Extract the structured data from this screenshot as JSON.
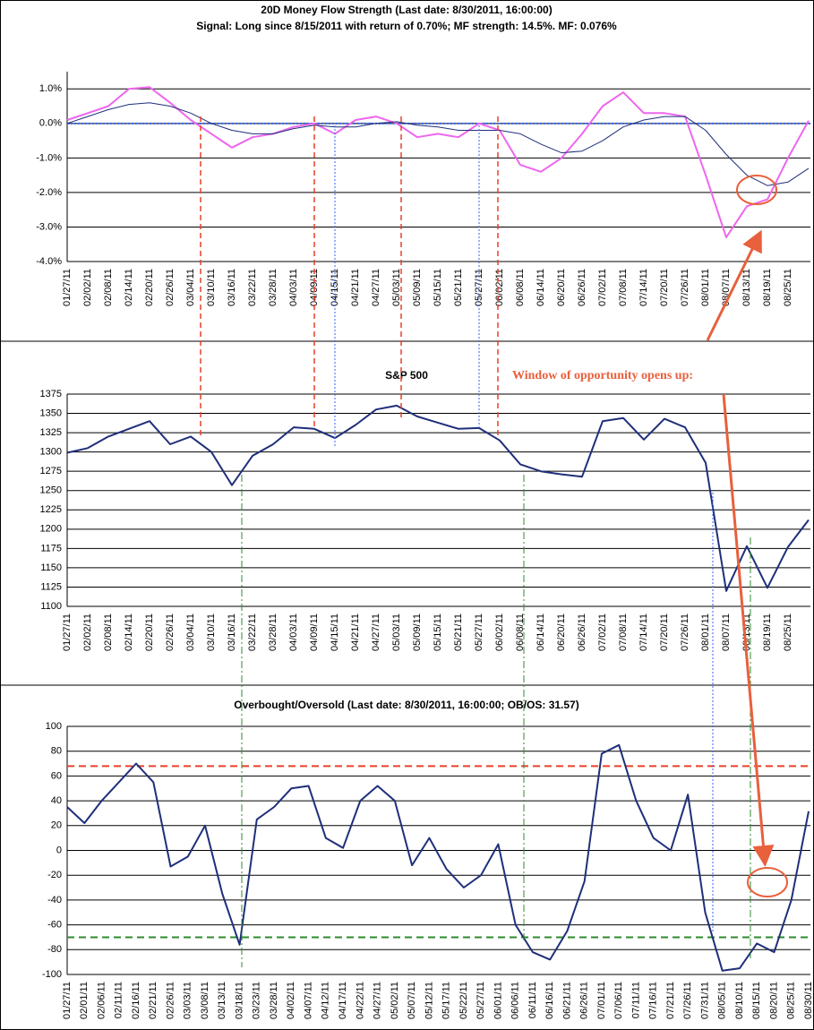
{
  "chart_data": [
    {
      "type": "line",
      "title": "20D Money Flow Strength (Last date: 8/30/2011, 16:00:00)",
      "subtitle": "Signal: Long since  8/15/2011 with return of 0.70%; MF strength: 14.5%. MF: 0.076%",
      "categories": [
        "01/27/11",
        "02/02/11",
        "02/08/11",
        "02/14/11",
        "02/20/11",
        "02/26/11",
        "03/04/11",
        "03/10/11",
        "03/16/11",
        "03/22/11",
        "03/28/11",
        "04/03/11",
        "04/09/11",
        "04/15/11",
        "04/21/11",
        "04/27/11",
        "05/03/11",
        "05/09/11",
        "05/15/11",
        "05/21/11",
        "05/27/11",
        "06/02/11",
        "06/08/11",
        "06/14/11",
        "06/20/11",
        "06/26/11",
        "07/02/11",
        "07/08/11",
        "07/14/11",
        "07/20/11",
        "07/26/11",
        "08/01/11",
        "08/07/11",
        "08/13/11",
        "08/19/11",
        "08/25/11",
        null
      ],
      "series": [
        {
          "color": "#ee66ee",
          "width": 2,
          "values": [
            0.1,
            0.3,
            0.5,
            1.0,
            1.05,
            0.6,
            0.1,
            -0.3,
            -0.7,
            -0.4,
            -0.3,
            -0.1,
            0.0,
            -0.3,
            0.1,
            0.2,
            0.0,
            -0.4,
            -0.3,
            -0.4,
            0.0,
            -0.2,
            -1.2,
            -1.4,
            -1.0,
            -0.3,
            0.5,
            0.9,
            0.3,
            0.3,
            0.2,
            -1.5,
            -3.3,
            -2.4,
            -2.2,
            -1.0,
            0.08
          ]
        },
        {
          "color": "#1f2f7a",
          "width": 1,
          "values": [
            0.0,
            0.2,
            0.4,
            0.55,
            0.6,
            0.5,
            0.3,
            0.0,
            -0.2,
            -0.3,
            -0.3,
            -0.15,
            -0.05,
            -0.1,
            -0.1,
            0.0,
            0.05,
            -0.05,
            -0.1,
            -0.2,
            -0.2,
            -0.2,
            -0.3,
            -0.6,
            -0.85,
            -0.8,
            -0.5,
            -0.1,
            0.1,
            0.2,
            0.2,
            -0.2,
            -0.9,
            -1.5,
            -1.8,
            -1.7,
            -1.3
          ]
        }
      ],
      "hlines": [
        {
          "value": 0,
          "color": "#3366ff",
          "style": "dotted"
        }
      ],
      "ylim": [
        -4,
        1.5
      ],
      "yticks": [
        {
          "value": -4,
          "label": "-4.0%"
        },
        {
          "value": -3,
          "label": "-3.0%"
        },
        {
          "value": -2,
          "label": "-2.0%"
        },
        {
          "value": -1,
          "label": "-1.0%"
        },
        {
          "value": 0,
          "label": "0.0%"
        },
        {
          "value": 1,
          "label": "1.0%"
        }
      ],
      "grid": true
    },
    {
      "type": "line",
      "title": "S&P 500",
      "annotation": "Window of opportunity opens up:",
      "categories": [
        "01/27/11",
        "02/02/11",
        "02/08/11",
        "02/14/11",
        "02/20/11",
        "02/26/11",
        "03/04/11",
        "03/10/11",
        "03/16/11",
        "03/22/11",
        "03/28/11",
        "04/03/11",
        "04/09/11",
        "04/15/11",
        "04/21/11",
        "04/27/11",
        "05/03/11",
        "05/09/11",
        "05/15/11",
        "05/21/11",
        "05/27/11",
        "06/02/11",
        "06/08/11",
        "06/14/11",
        "06/20/11",
        "06/26/11",
        "07/02/11",
        "07/08/11",
        "07/14/11",
        "07/20/11",
        "07/26/11",
        "08/01/11",
        "08/07/11",
        "08/13/11",
        "08/19/11",
        "08/25/11",
        null
      ],
      "series": [
        {
          "color": "#1f2f7a",
          "width": 2,
          "values": [
            1299,
            1305,
            1320,
            1330,
            1340,
            1310,
            1320,
            1300,
            1257,
            1295,
            1310,
            1332,
            1330,
            1318,
            1335,
            1355,
            1360,
            1346,
            1338,
            1330,
            1331,
            1315,
            1284,
            1275,
            1271,
            1268,
            1340,
            1344,
            1316,
            1343,
            1332,
            1286,
            1120,
            1178,
            1124,
            1177,
            1212
          ]
        }
      ],
      "ylim": [
        1100,
        1375
      ],
      "yticks": [
        1100,
        1125,
        1150,
        1175,
        1200,
        1225,
        1250,
        1275,
        1300,
        1325,
        1350,
        1375
      ],
      "grid": true
    },
    {
      "type": "line",
      "title": "Overbought/Oversold (Last date: 8/30/2011, 16:00:00; OB/OS: 31.57)",
      "categories": [
        "01/27/11",
        "02/01/11",
        "02/06/11",
        "02/11/11",
        "02/16/11",
        "02/21/11",
        "02/26/11",
        "03/03/11",
        "03/08/11",
        "03/13/11",
        "03/18/11",
        "03/23/11",
        "03/28/11",
        "04/02/11",
        "04/07/11",
        "04/12/11",
        "04/17/11",
        "04/22/11",
        "04/27/11",
        "05/02/11",
        "05/07/11",
        "05/12/11",
        "05/17/11",
        "05/22/11",
        "05/27/11",
        "06/01/11",
        "06/06/11",
        "06/11/11",
        "06/16/11",
        "06/21/11",
        "06/26/11",
        "07/01/11",
        "07/06/11",
        "07/11/11",
        "07/16/11",
        "07/21/11",
        "07/26/11",
        "07/31/11",
        "08/05/11",
        "08/10/11",
        "08/15/11",
        "08/20/11",
        "08/25/11",
        "08/30/11"
      ],
      "series": [
        {
          "color": "#1f2f7a",
          "width": 2,
          "values": [
            35,
            22,
            40,
            55,
            70,
            55,
            -13,
            -5,
            20,
            -35,
            -76,
            25,
            35,
            50,
            52,
            10,
            2,
            40,
            52,
            40,
            -12,
            10,
            -15,
            -30,
            -20,
            5,
            -60,
            -82,
            -88,
            -65,
            -25,
            78,
            85,
            40,
            10,
            0,
            45,
            -50,
            -97,
            -95,
            -75,
            -82,
            -40,
            31.57
          ]
        }
      ],
      "hlines": [
        {
          "value": 68,
          "color": "#e8412a",
          "style": "dashed"
        },
        {
          "value": -70,
          "color": "#2e8b2e",
          "style": "dashed"
        }
      ],
      "ylim": [
        -100,
        100
      ],
      "yticks": [
        -100,
        -80,
        -60,
        -40,
        -20,
        0,
        20,
        40,
        60,
        80,
        100
      ],
      "grid": true
    }
  ]
}
